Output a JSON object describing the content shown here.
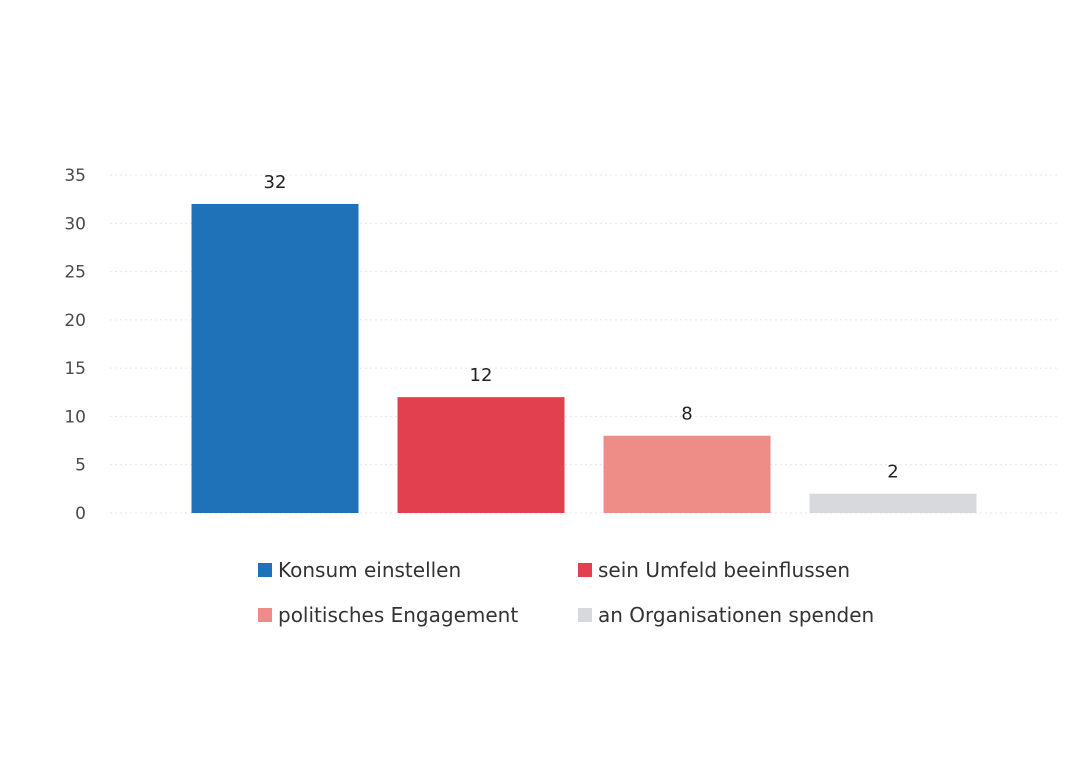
{
  "chart_data": {
    "type": "bar",
    "categories": [
      "Konsum einstellen",
      "sein Umfeld beeinflussen",
      "politisches Engagement",
      "an Organisationen spenden"
    ],
    "values": [
      32,
      12,
      8,
      2
    ],
    "colors": [
      "#1f72b8",
      "#e2404e",
      "#ee8c88",
      "#d8d9dd"
    ],
    "ylim": [
      0,
      35
    ],
    "yticks": [
      "0",
      "5",
      "10",
      "15",
      "20",
      "25",
      "30",
      "35"
    ],
    "data_labels": [
      "32",
      "12",
      "8",
      "2"
    ],
    "grid": true,
    "legend_position": "bottom",
    "legend": [
      {
        "label": "Konsum einstellen",
        "color": "#1f72b8"
      },
      {
        "label": "sein Umfeld beeinflussen",
        "color": "#e2404e"
      },
      {
        "label": "politisches Engagement",
        "color": "#ee8c88"
      },
      {
        "label": "an Organisationen spenden",
        "color": "#d8d9dd"
      }
    ]
  }
}
